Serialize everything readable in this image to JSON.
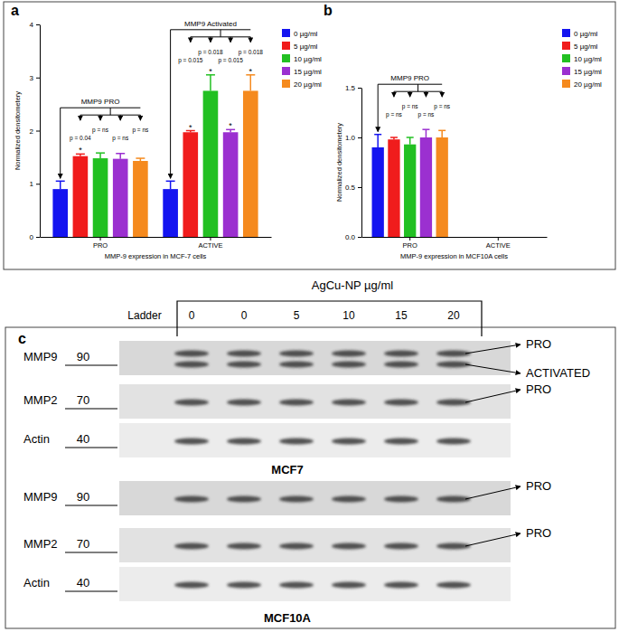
{
  "chart_data": [
    {
      "type": "bar",
      "panel": "a",
      "categories": [
        "PRO",
        "ACTIVE"
      ],
      "x_label": "MMP-9 expression in MCF-7 cells",
      "y_label": "Normalized densitometery",
      "ylim": [
        0,
        4
      ],
      "yticks": [
        0,
        1,
        2,
        3,
        4
      ],
      "legend": "right",
      "group_labels": [
        "MMP9 PRO",
        "MMP9 Activated"
      ],
      "series": [
        {
          "name": "0 µg/ml",
          "color": "#1414f0",
          "values": [
            0.9,
            0.9
          ],
          "errors": [
            0.15,
            0.15
          ],
          "p_labels": [
            null,
            null
          ],
          "significance": [
            null,
            null
          ]
        },
        {
          "name": "5 µg/ml",
          "color": "#f01c1c",
          "values": [
            1.52,
            1.97
          ],
          "errors": [
            0.04,
            0.03
          ],
          "p_labels": [
            "p = 0.04",
            "p = 0.015"
          ],
          "significance": [
            "*",
            "*"
          ]
        },
        {
          "name": "10 µg/ml",
          "color": "#22c022",
          "values": [
            1.48,
            2.75
          ],
          "errors": [
            0.1,
            0.3
          ],
          "p_labels": [
            "p = ns",
            "p = 0.018"
          ],
          "significance": [
            null,
            "*"
          ]
        },
        {
          "name": "15 µg/ml",
          "color": "#9b30d0",
          "values": [
            1.47,
            1.97
          ],
          "errors": [
            0.1,
            0.05
          ],
          "p_labels": [
            "p = ns",
            "p = 0.015"
          ],
          "significance": [
            null,
            "*"
          ]
        },
        {
          "name": "20 µg/ml",
          "color": "#f58a1e",
          "values": [
            1.43,
            2.75
          ],
          "errors": [
            0.05,
            0.3
          ],
          "p_labels": [
            "p = ns",
            "p = 0.018"
          ],
          "significance": [
            null,
            "*"
          ]
        }
      ]
    },
    {
      "type": "bar",
      "panel": "b",
      "categories": [
        "PRO",
        "ACTIVE"
      ],
      "x_label": "MMP-9 expression in MCF10A cells",
      "y_label": "Normalized densitometery",
      "ylim": [
        0,
        1.5
      ],
      "yticks": [
        {
          "value": 0,
          "label": "0.0"
        },
        0.5,
        {
          "value": 1,
          "label": "1.0"
        },
        1.5
      ],
      "legend": "right",
      "group_labels": [
        "MMP9 PRO",
        null
      ],
      "series": [
        {
          "name": "0 µg/ml",
          "color": "#1414f0",
          "values": [
            0.9,
            null
          ],
          "errors": [
            0.13,
            null
          ],
          "p_labels": [
            null,
            null
          ]
        },
        {
          "name": "5 µg/ml",
          "color": "#f01c1c",
          "values": [
            0.98,
            null
          ],
          "errors": [
            0.02,
            null
          ],
          "p_labels": [
            "p = ns",
            null
          ]
        },
        {
          "name": "10 µg/ml",
          "color": "#22c022",
          "values": [
            0.93,
            null
          ],
          "errors": [
            0.07,
            null
          ],
          "p_labels": [
            "p = ns",
            null
          ]
        },
        {
          "name": "15 µg/ml",
          "color": "#9b30d0",
          "values": [
            1,
            null
          ],
          "errors": [
            0.08,
            null
          ],
          "p_labels": [
            "p = ns",
            null
          ]
        },
        {
          "name": "20 µg/ml",
          "color": "#f58a1e",
          "values": [
            1,
            null
          ],
          "errors": [
            0.07,
            null
          ],
          "p_labels": [
            "p = ns",
            null
          ]
        }
      ]
    }
  ],
  "blot": {
    "panel": "c",
    "header": "AgCu-NP µg/ml",
    "ladder": "Ladder",
    "lanes": [
      "0",
      "0",
      "5",
      "10",
      "15",
      "20"
    ],
    "groups": [
      {
        "name": "MCF7",
        "rows": [
          {
            "protein": "MMP9",
            "size": 90,
            "arrows": [
              "PRO",
              "ACTIVATED"
            ]
          },
          {
            "protein": "MMP2",
            "size": 70,
            "arrows": [
              "PRO"
            ]
          },
          {
            "protein": "Actin",
            "size": 40,
            "arrows": []
          }
        ]
      },
      {
        "name": "MCF10A",
        "rows": [
          {
            "protein": "MMP9",
            "size": 90,
            "arrows": [
              "PRO"
            ]
          },
          {
            "protein": "MMP2",
            "size": 70,
            "arrows": [
              "PRO"
            ]
          },
          {
            "protein": "Actin",
            "size": 40,
            "arrows": []
          }
        ]
      }
    ]
  }
}
